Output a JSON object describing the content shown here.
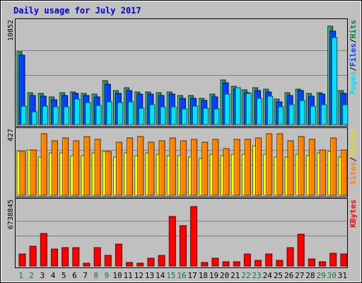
{
  "chart_data": {
    "type": "bar",
    "title": "Daily usage for July 2017",
    "x": [
      "1",
      "2",
      "3",
      "4",
      "5",
      "6",
      "7",
      "8",
      "9",
      "10",
      "11",
      "12",
      "13",
      "14",
      "15",
      "16",
      "17",
      "18",
      "19",
      "20",
      "21",
      "22",
      "23",
      "24",
      "25",
      "26",
      "27",
      "28",
      "29",
      "30",
      "31"
    ],
    "weekend_days": [
      1,
      2,
      8,
      9,
      15,
      16,
      22,
      23,
      29,
      30
    ],
    "panels": [
      {
        "name": "pages-files-hits",
        "ymax_label": "10852",
        "ylim": [
          0,
          10852
        ],
        "legend": [
          {
            "label": "Pages",
            "color": "#00e0ff"
          },
          {
            "label": "/",
            "color": "#000000"
          },
          {
            "label": "Files",
            "color": "#0040ff"
          },
          {
            "label": "/",
            "color": "#000000"
          },
          {
            "label": "Hits",
            "color": "#008040"
          }
        ],
        "series": [
          {
            "name": "Hits",
            "color": "#308c60",
            "values": [
              8000,
              3500,
              3400,
              3000,
              3500,
              3600,
              3400,
              3300,
              4800,
              3700,
              4000,
              3600,
              3600,
              3500,
              3600,
              3200,
              3200,
              2900,
              3300,
              4900,
              4200,
              3800,
              4000,
              3900,
              2800,
              3500,
              3900,
              3400,
              3500,
              10800,
              3700
            ]
          },
          {
            "name": "Files",
            "color": "#0040ff",
            "values": [
              7600,
              3200,
              3100,
              2700,
              3200,
              3400,
              3200,
              3000,
              4400,
              3400,
              3700,
              3300,
              3300,
              3200,
              3300,
              2900,
              2900,
              2600,
              3000,
              4600,
              3900,
              3500,
              3700,
              3600,
              2500,
              3200,
              3700,
              3100,
              3300,
              10200,
              3400
            ]
          },
          {
            "name": "Pages",
            "color": "#00e0ff",
            "values": [
              2000,
              1400,
              2000,
              1900,
              1900,
              2800,
              2400,
              2100,
              2500,
              2400,
              2500,
              1800,
              2200,
              1900,
              1900,
              1700,
              2000,
              1800,
              1700,
              3300,
              4000,
              3400,
              2900,
              3100,
              1900,
              2200,
              2600,
              2000,
              2200,
              9500,
              2200
            ]
          }
        ]
      },
      {
        "name": "visits-sites",
        "ymax_label": "427",
        "ylim": [
          0,
          427
        ],
        "legend": [
          {
            "label": "Sites",
            "color": "#ff8000"
          },
          {
            "label": "/",
            "color": "#000000"
          },
          {
            "label": "Visits",
            "color": "#e8e000"
          }
        ],
        "series": [
          {
            "name": "Visits",
            "color": "#ffff00",
            "values": [
              310,
              320,
              270,
              300,
              300,
              280,
              280,
              300,
              310,
              270,
              300,
              280,
              300,
              290,
              280,
              280,
              270,
              260,
              290,
              280,
              290,
              290,
              350,
              290,
              270,
              270,
              290,
              280,
              300,
              310,
              270
            ]
          },
          {
            "name": "Sites",
            "color": "#ff8000",
            "values": [
              310,
              320,
              430,
              380,
              400,
              380,
              410,
              390,
              310,
              370,
              400,
              410,
              370,
              380,
              400,
              380,
              390,
              370,
              390,
              330,
              390,
              390,
              400,
              430,
              430,
              380,
              410,
              390,
              320,
              400,
              320
            ]
          }
        ]
      },
      {
        "name": "kbytes",
        "ymax_label": "6738845",
        "ylim": [
          0,
          6738845
        ],
        "legend": [
          {
            "label": "KBytes",
            "color": "#ff0000"
          }
        ],
        "series": [
          {
            "name": "KBytes",
            "color": "#ff0000",
            "values": [
              1300000,
              2200000,
              3600000,
              1900000,
              2000000,
              2000000,
              300000,
              2000000,
              1200000,
              2400000,
              400000,
              300000,
              900000,
              1200000,
              5500000,
              4500000,
              6600000,
              400000,
              900000,
              500000,
              500000,
              1300000,
              600000,
              1300000,
              600000,
              2000000,
              3500000,
              800000,
              500000,
              1400000,
              1300000
            ]
          }
        ]
      }
    ]
  }
}
